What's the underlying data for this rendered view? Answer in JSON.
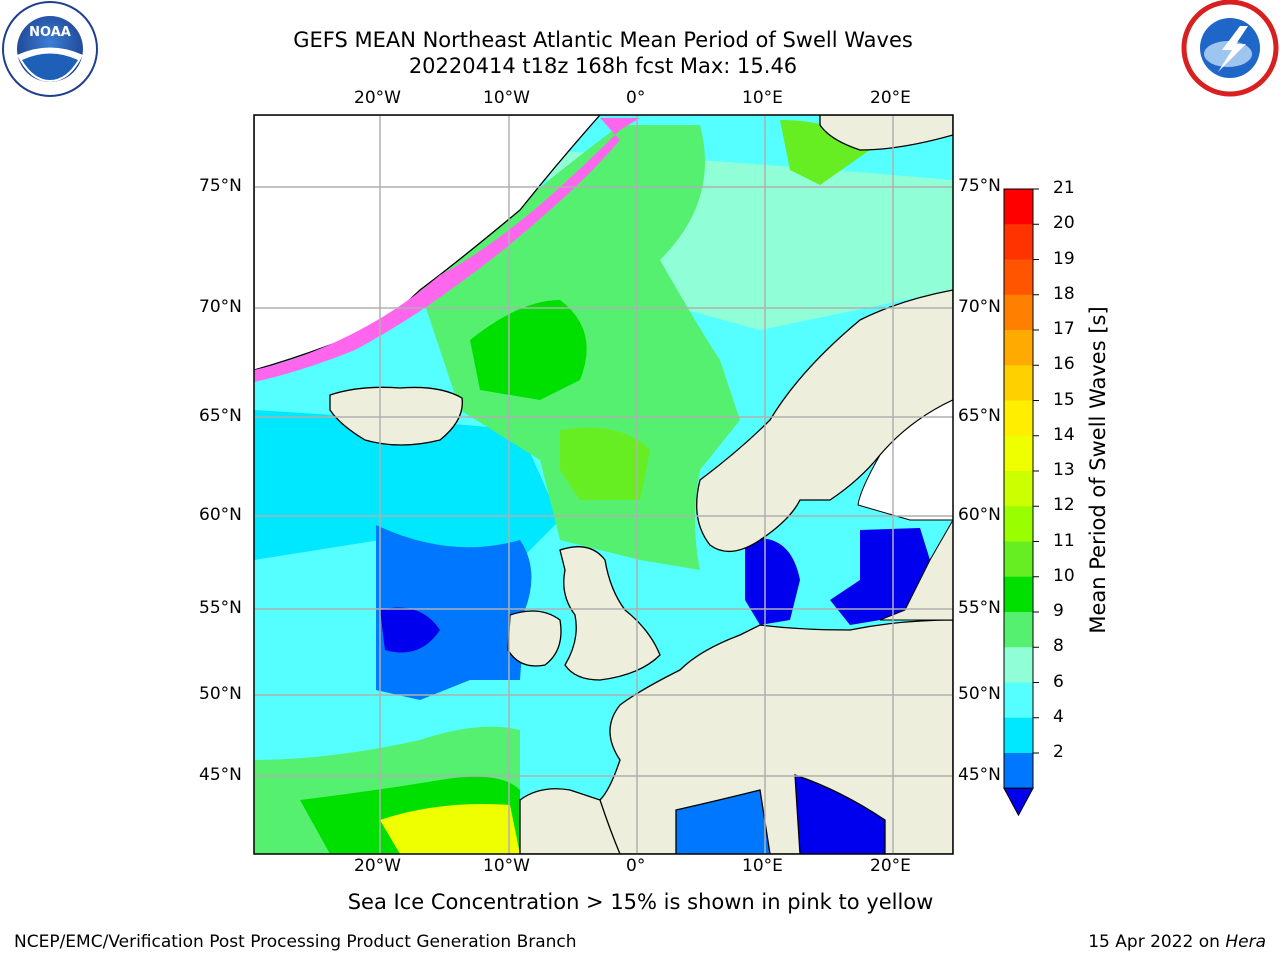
{
  "title_line1": "GEFS MEAN Northeast Atlantic Mean Period of Swell Waves",
  "title_line2": "20220414 t18z 168h fcst   Max: 15.46",
  "lon_labels": [
    "20°W",
    "10°W",
    "0°",
    "10°E",
    "20°E"
  ],
  "lat_labels": [
    "75°N",
    "70°N",
    "65°N",
    "60°N",
    "55°N",
    "50°N",
    "45°N"
  ],
  "colorbar": {
    "label": "Mean Period of Swell Waves [s]",
    "ticks": [
      "21",
      "20",
      "19",
      "18",
      "17",
      "16",
      "15",
      "14",
      "13",
      "12",
      "11",
      "10",
      "9",
      "8",
      "6",
      "4",
      "2"
    ],
    "colors": [
      "#ff0000",
      "#ff3300",
      "#ff5500",
      "#ff8000",
      "#ffaa00",
      "#ffd000",
      "#ffee00",
      "#f0ff00",
      "#ccff00",
      "#99ff00",
      "#66ee22",
      "#00e000",
      "#55f070",
      "#90ffd8",
      "#55ffff",
      "#00e8ff",
      "#0077ff"
    ],
    "under_color": "#0000ee"
  },
  "footnote": "Sea Ice Concentration > 15% is shown in pink to yellow",
  "credit": "NCEP/EMC/Verification Post Processing Product Generation Branch",
  "date_prefix": "15 Apr 2022 on ",
  "date_machine": "Hera",
  "logos": {
    "left": "NOAA",
    "right": "NATIONAL WEATHER SERVICE"
  }
}
